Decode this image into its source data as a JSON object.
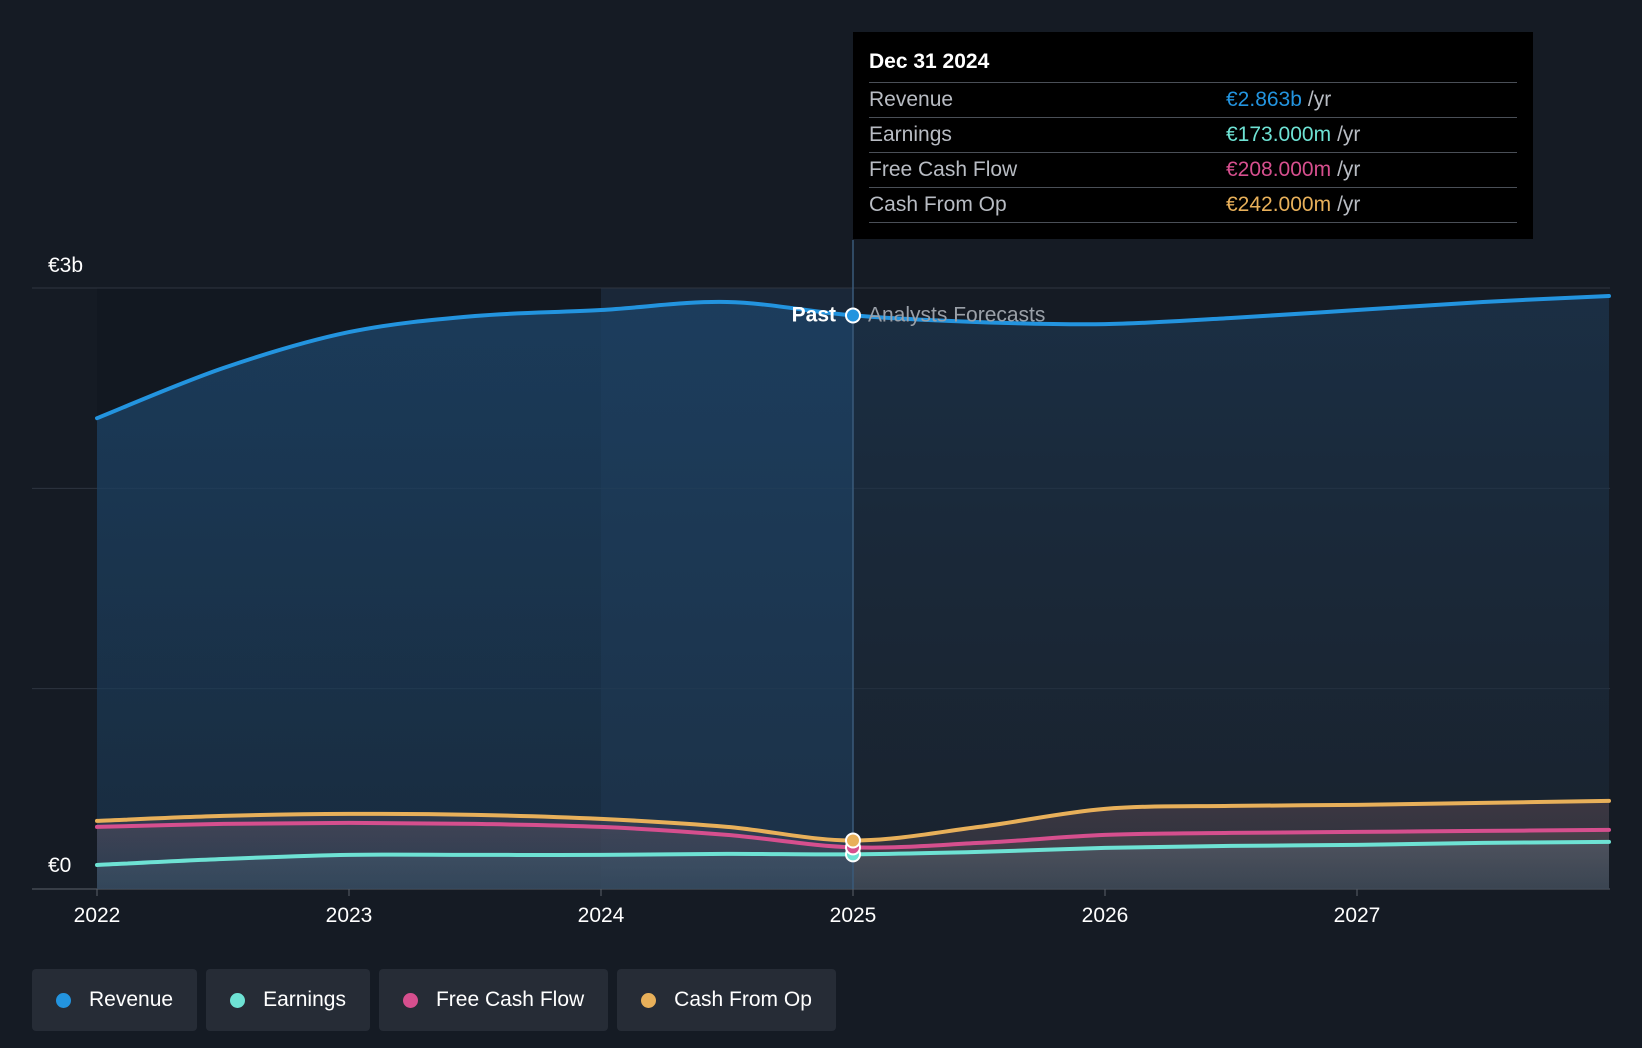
{
  "chart_data": {
    "type": "area",
    "x_ticks": [
      "2022",
      "2023",
      "2024",
      "2025",
      "2026",
      "2027"
    ],
    "y_ticks": [
      {
        "label": "€3b",
        "value": 3
      },
      {
        "label": "€0",
        "value": 0
      }
    ],
    "ylim": [
      0,
      3
    ],
    "xlim": [
      2022.0,
      2028.0
    ],
    "divider_x": 2025.0,
    "past_label": "Past",
    "forecast_label": "Analysts Forecasts",
    "series": [
      {
        "name": "Revenue",
        "color": "#2394df",
        "points": [
          [
            2022.0,
            2.35
          ],
          [
            2022.5,
            2.6
          ],
          [
            2023.0,
            2.78
          ],
          [
            2023.5,
            2.86
          ],
          [
            2024.0,
            2.89
          ],
          [
            2024.5,
            2.93
          ],
          [
            2025.0,
            2.863
          ],
          [
            2025.5,
            2.83
          ],
          [
            2026.0,
            2.82
          ],
          [
            2026.5,
            2.85
          ],
          [
            2027.0,
            2.89
          ],
          [
            2027.5,
            2.93
          ],
          [
            2028.0,
            2.96
          ]
        ]
      },
      {
        "name": "Earnings",
        "color": "#6ee2d4",
        "points": [
          [
            2022.0,
            0.12
          ],
          [
            2022.5,
            0.15
          ],
          [
            2023.0,
            0.17
          ],
          [
            2023.5,
            0.17
          ],
          [
            2024.0,
            0.17
          ],
          [
            2024.5,
            0.175
          ],
          [
            2025.0,
            0.173
          ],
          [
            2025.5,
            0.185
          ],
          [
            2026.0,
            0.205
          ],
          [
            2026.5,
            0.215
          ],
          [
            2027.0,
            0.22
          ],
          [
            2027.5,
            0.23
          ],
          [
            2028.0,
            0.235
          ]
        ]
      },
      {
        "name": "Free Cash Flow",
        "color": "#d64f8e",
        "points": [
          [
            2022.0,
            0.31
          ],
          [
            2022.5,
            0.325
          ],
          [
            2023.0,
            0.33
          ],
          [
            2023.5,
            0.325
          ],
          [
            2024.0,
            0.31
          ],
          [
            2024.5,
            0.27
          ],
          [
            2025.0,
            0.208
          ],
          [
            2025.5,
            0.23
          ],
          [
            2026.0,
            0.27
          ],
          [
            2026.5,
            0.28
          ],
          [
            2027.0,
            0.285
          ],
          [
            2027.5,
            0.29
          ],
          [
            2028.0,
            0.295
          ]
        ]
      },
      {
        "name": "Cash From Op",
        "color": "#e8b05a",
        "points": [
          [
            2022.0,
            0.34
          ],
          [
            2022.5,
            0.365
          ],
          [
            2023.0,
            0.375
          ],
          [
            2023.5,
            0.37
          ],
          [
            2024.0,
            0.35
          ],
          [
            2024.5,
            0.31
          ],
          [
            2025.0,
            0.242
          ],
          [
            2025.5,
            0.31
          ],
          [
            2026.0,
            0.4
          ],
          [
            2026.5,
            0.415
          ],
          [
            2027.0,
            0.42
          ],
          [
            2027.5,
            0.43
          ],
          [
            2028.0,
            0.44
          ]
        ]
      }
    ]
  },
  "tooltip": {
    "date": "Dec 31 2024",
    "rows": [
      {
        "label": "Revenue",
        "value": "€2.863b",
        "unit": "/yr",
        "color": "#2394df"
      },
      {
        "label": "Earnings",
        "value": "€173.000m",
        "unit": "/yr",
        "color": "#6ee2d4"
      },
      {
        "label": "Free Cash Flow",
        "value": "€208.000m",
        "unit": "/yr",
        "color": "#d64f8e"
      },
      {
        "label": "Cash From Op",
        "value": "€242.000m",
        "unit": "/yr",
        "color": "#e8b05a"
      }
    ]
  },
  "legend": [
    {
      "label": "Revenue",
      "color": "#2394df"
    },
    {
      "label": "Earnings",
      "color": "#6ee2d4"
    },
    {
      "label": "Free Cash Flow",
      "color": "#d64f8e"
    },
    {
      "label": "Cash From Op",
      "color": "#e8b05a"
    }
  ]
}
